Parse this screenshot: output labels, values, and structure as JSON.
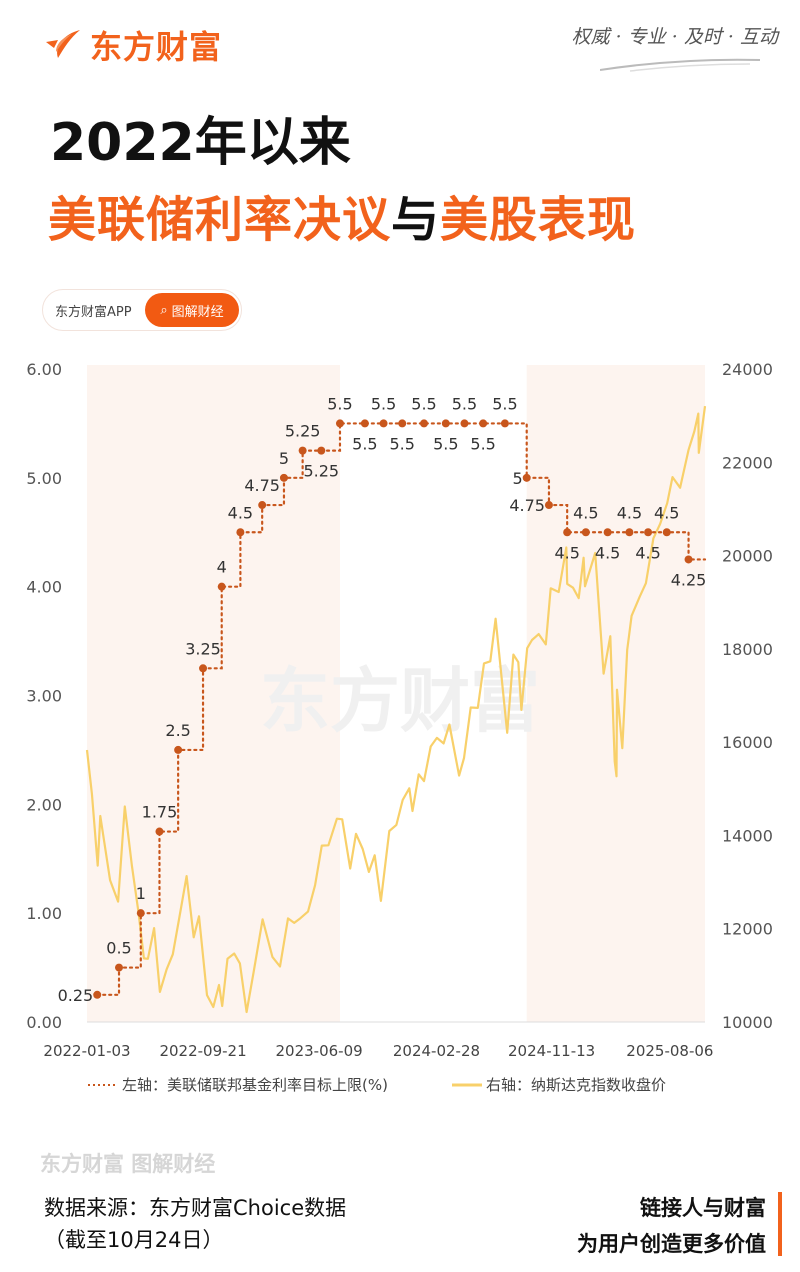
{
  "header": {
    "logo_text": "东方财富",
    "slogan": "权威 · 专业 · 及时 · 互动"
  },
  "title": {
    "line1": "2022年以来",
    "line2_a": "美联储利率决议",
    "line2_b": "与",
    "line2_c": "美股表现"
  },
  "pill": {
    "app": "东方财富APP",
    "button": "图解财经"
  },
  "watermark": "东方财富",
  "footer": {
    "watermark": "东方财富 图解财经",
    "source": "数据来源：东方财富Choice数据",
    "date_note": "（截至10月24日）",
    "tagline1": "链接人与财富",
    "tagline2": "为用户创造更多价值"
  },
  "colors": {
    "brand": "#f2621c",
    "rate_line": "#c8561c",
    "nasdaq_line": "#f8d06a",
    "shade": "#fdf4ef"
  },
  "chart_data": {
    "type": "line",
    "left_axis": {
      "ticks": [
        "0.00",
        "1.00",
        "2.00",
        "3.00",
        "4.00",
        "5.00",
        "6.00"
      ],
      "range": [
        0,
        6
      ]
    },
    "right_axis": {
      "ticks": [
        "10000",
        "12000",
        "14000",
        "16000",
        "18000",
        "20000",
        "22000",
        "24000"
      ],
      "range": [
        10000,
        24000
      ]
    },
    "x_ticks": [
      "2022-01-03",
      "2022-09-21",
      "2023-06-09",
      "2024-02-28",
      "2024-11-13",
      "2025-08-06"
    ],
    "x_range": [
      "2022-01-03",
      "2025-10-24"
    ],
    "shaded_periods": [
      [
        "2022-01-03",
        "2023-07-26"
      ],
      [
        "2024-09-18",
        "2025-10-24"
      ]
    ],
    "legend": {
      "rate": "左轴：美联储联邦基金利率目标上限(%)",
      "nasdaq": "右轴：纳斯达克指数收盘价",
      "placement": "bottom"
    },
    "series": [
      {
        "name": "左轴：美联储联邦基金利率目标上限(%)",
        "axis": "left",
        "style": "dotted-step",
        "points": [
          [
            "2022-01-26",
            0.25,
            "0.25",
            "left"
          ],
          [
            "2022-03-16",
            0.5,
            "0.5",
            "above"
          ],
          [
            "2022-05-04",
            1,
            "1",
            "above"
          ],
          [
            "2022-06-15",
            1.75,
            "1.75",
            "above"
          ],
          [
            "2022-07-27",
            2.5,
            "2.5",
            "above"
          ],
          [
            "2022-09-21",
            3.25,
            "3.25",
            "above"
          ],
          [
            "2022-11-02",
            4,
            "4",
            "above"
          ],
          [
            "2022-12-14",
            4.5,
            "4.5",
            "above"
          ],
          [
            "2023-02-01",
            4.75,
            "4.75",
            "above"
          ],
          [
            "2023-03-22",
            5,
            "5",
            "above"
          ],
          [
            "2023-05-03",
            5.25,
            "5.25",
            "above"
          ],
          [
            "2023-06-14",
            5.25,
            "5.25",
            "below"
          ],
          [
            "2023-07-26",
            5.5,
            "5.5",
            "above"
          ],
          [
            "2023-09-20",
            5.5,
            "5.5",
            "below"
          ],
          [
            "2023-11-01",
            5.5,
            "5.5",
            "above"
          ],
          [
            "2023-12-13",
            5.5,
            "5.5",
            "below"
          ],
          [
            "2024-01-31",
            5.5,
            "5.5",
            "above"
          ],
          [
            "2024-03-20",
            5.5,
            "5.5",
            "below"
          ],
          [
            "2024-05-01",
            5.5,
            "5.5",
            "above"
          ],
          [
            "2024-06-12",
            5.5,
            "5.5",
            "below"
          ],
          [
            "2024-07-31",
            5.5,
            "5.5",
            "above"
          ],
          [
            "2024-09-18",
            5,
            "5",
            "left"
          ],
          [
            "2024-11-07",
            4.75,
            "4.75",
            "left"
          ],
          [
            "2024-12-18",
            4.5,
            "4.5",
            "below"
          ],
          [
            "2025-01-29",
            4.5,
            "4.5",
            "above"
          ],
          [
            "2025-03-19",
            4.5,
            "4.5",
            "below"
          ],
          [
            "2025-05-07",
            4.5,
            "4.5",
            "above"
          ],
          [
            "2025-06-18",
            4.5,
            "4.5",
            "below"
          ],
          [
            "2025-07-30",
            4.5,
            "4.5",
            "above"
          ],
          [
            "2025-09-17",
            4.25,
            "4.25",
            "below"
          ]
        ]
      },
      {
        "name": "右轴：纳斯达克指数收盘价",
        "axis": "right",
        "style": "line",
        "points": [
          [
            "2022-01-03",
            15832
          ],
          [
            "2022-01-14",
            14894
          ],
          [
            "2022-01-27",
            13353
          ],
          [
            "2022-02-02",
            14417
          ],
          [
            "2022-02-24",
            13037
          ],
          [
            "2022-03-14",
            12581
          ],
          [
            "2022-03-29",
            14620
          ],
          [
            "2022-04-14",
            13351
          ],
          [
            "2022-04-29",
            12335
          ],
          [
            "2022-05-11",
            11364
          ],
          [
            "2022-05-20",
            11355
          ],
          [
            "2022-06-03",
            12013
          ],
          [
            "2022-06-16",
            10646
          ],
          [
            "2022-07-01",
            11128
          ],
          [
            "2022-07-15",
            11452
          ],
          [
            "2022-08-01",
            12369
          ],
          [
            "2022-08-15",
            13128
          ],
          [
            "2022-08-31",
            11816
          ],
          [
            "2022-09-12",
            12266
          ],
          [
            "2022-09-30",
            10576
          ],
          [
            "2022-10-14",
            10321
          ],
          [
            "2022-10-27",
            10793
          ],
          [
            "2022-11-03",
            10343
          ],
          [
            "2022-11-15",
            11358
          ],
          [
            "2022-11-30",
            11468
          ],
          [
            "2022-12-13",
            11256
          ],
          [
            "2022-12-28",
            10214
          ],
          [
            "2023-01-13",
            11079
          ],
          [
            "2023-02-02",
            12201
          ],
          [
            "2023-02-24",
            11395
          ],
          [
            "2023-03-13",
            11189
          ],
          [
            "2023-03-31",
            12222
          ],
          [
            "2023-04-14",
            12124
          ],
          [
            "2023-04-28",
            12226
          ],
          [
            "2023-05-15",
            12366
          ],
          [
            "2023-05-31",
            12935
          ],
          [
            "2023-06-15",
            13782
          ],
          [
            "2023-06-30",
            13788
          ],
          [
            "2023-07-19",
            14358
          ],
          [
            "2023-07-31",
            14346
          ],
          [
            "2023-08-18",
            13290
          ],
          [
            "2023-08-31",
            14035
          ],
          [
            "2023-09-15",
            13709
          ],
          [
            "2023-09-29",
            13219
          ],
          [
            "2023-10-12",
            13574
          ],
          [
            "2023-10-26",
            12596
          ],
          [
            "2023-11-14",
            14094
          ],
          [
            "2023-11-30",
            14226
          ],
          [
            "2023-12-14",
            14762
          ],
          [
            "2023-12-29",
            15011
          ],
          [
            "2024-01-05",
            14524
          ],
          [
            "2024-01-19",
            15311
          ],
          [
            "2024-01-31",
            15164
          ],
          [
            "2024-02-15",
            15906
          ],
          [
            "2024-02-29",
            16092
          ],
          [
            "2024-03-15",
            15973
          ],
          [
            "2024-03-28",
            16379
          ],
          [
            "2024-04-19",
            15282
          ],
          [
            "2024-04-30",
            15658
          ],
          [
            "2024-05-15",
            16743
          ],
          [
            "2024-05-31",
            16735
          ],
          [
            "2024-06-14",
            17689
          ],
          [
            "2024-06-28",
            17733
          ],
          [
            "2024-07-10",
            18647
          ],
          [
            "2024-07-24",
            17342
          ],
          [
            "2024-08-05",
            16200
          ],
          [
            "2024-08-19",
            17877
          ],
          [
            "2024-08-30",
            17714
          ],
          [
            "2024-09-06",
            16691
          ],
          [
            "2024-09-19",
            18014
          ],
          [
            "2024-09-30",
            18189
          ],
          [
            "2024-10-15",
            18316
          ],
          [
            "2024-10-31",
            18095
          ],
          [
            "2024-11-11",
            19299
          ],
          [
            "2024-11-29",
            19218
          ],
          [
            "2024-12-16",
            20174
          ],
          [
            "2024-12-18",
            19393
          ],
          [
            "2024-12-31",
            19311
          ],
          [
            "2025-01-13",
            19088
          ],
          [
            "2025-01-24",
            19954
          ],
          [
            "2025-01-27",
            19342
          ],
          [
            "2025-02-19",
            20056
          ],
          [
            "2025-03-10",
            17468
          ],
          [
            "2025-03-25",
            18272
          ],
          [
            "2025-04-04",
            15588
          ],
          [
            "2025-04-08",
            15268
          ],
          [
            "2025-04-09",
            17125
          ],
          [
            "2025-04-21",
            15871
          ],
          [
            "2025-05-02",
            17978
          ],
          [
            "2025-05-12",
            18708
          ],
          [
            "2025-05-30",
            19114
          ],
          [
            "2025-06-13",
            19407
          ],
          [
            "2025-06-30",
            20370
          ],
          [
            "2025-07-15",
            20677
          ],
          [
            "2025-07-31",
            21122
          ],
          [
            "2025-08-12",
            21682
          ],
          [
            "2025-08-29",
            21456
          ],
          [
            "2025-09-17",
            22261
          ],
          [
            "2025-09-30",
            22660
          ],
          [
            "2025-10-09",
            23043
          ],
          [
            "2025-10-10",
            22204
          ],
          [
            "2025-10-24",
            23204
          ]
        ]
      }
    ]
  }
}
